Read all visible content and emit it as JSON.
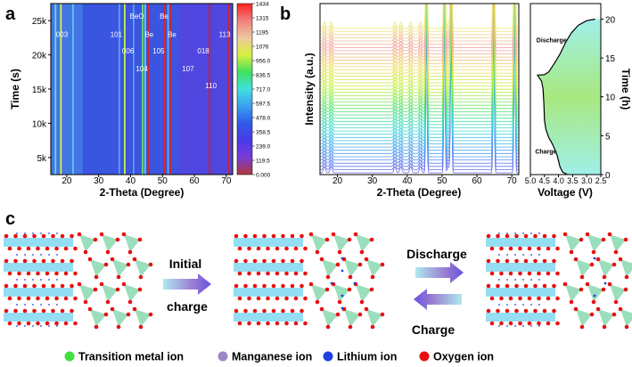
{
  "panel_labels": {
    "a": "a",
    "b": "b",
    "c": "c"
  },
  "chart_data": [
    {
      "type": "heatmap",
      "panel": "a",
      "xlabel": "2-Theta (Degree)",
      "ylabel": "Time (s)",
      "xlim": [
        15,
        72
      ],
      "ylim": [
        2500,
        27500
      ],
      "xticks": [
        20,
        30,
        40,
        50,
        60,
        70
      ],
      "yticks": [
        5000,
        10000,
        15000,
        20000,
        25000
      ],
      "ytick_labels": [
        "5k",
        "10k",
        "15k",
        "20k",
        "25k"
      ],
      "colorbar": {
        "range": [
          0,
          1434
        ],
        "tick_labels": [
          "0.000",
          "119.5",
          "239.0",
          "358.5",
          "478.0",
          "597.5",
          "717.0",
          "836.5",
          "956.0",
          "1076",
          "1195",
          "1315",
          "1434"
        ],
        "colors": [
          "#b03a3a",
          "#7a3ad8",
          "#4a3ae8",
          "#2f5ae8",
          "#3aa0f0",
          "#40e0e0",
          "#40e060",
          "#d8f040",
          "#f0c8a0",
          "#f08080",
          "#ff2020"
        ]
      },
      "background_color": "#3a55e0",
      "peaks": [
        {
          "x": 16.5,
          "color": "#60e0d0"
        },
        {
          "x": 18.2,
          "color": "#e0f040"
        },
        {
          "x": 22.0,
          "color": "#60c8e8"
        },
        {
          "x": 36.5,
          "color": "#5aa0f0"
        },
        {
          "x": 38.2,
          "color": "#c8f040"
        },
        {
          "x": 41.0,
          "color": "#5aa0f0"
        },
        {
          "x": 43.8,
          "color": "#70e070"
        },
        {
          "x": 44.6,
          "color": "#60d8e0"
        },
        {
          "x": 45.6,
          "color": "#e02020"
        },
        {
          "x": 50.7,
          "color": "#e02020"
        },
        {
          "x": 51.8,
          "color": "#50b0f0"
        },
        {
          "x": 52.6,
          "color": "#e02020"
        },
        {
          "x": 64.8,
          "color": "#d02020"
        },
        {
          "x": 70.8,
          "color": "#d02020"
        }
      ],
      "annotations": [
        {
          "text": "003",
          "x": 18.5,
          "y": 23000
        },
        {
          "text": "101",
          "x": 35.5,
          "y": 23000
        },
        {
          "text": "006",
          "x": 39.2,
          "y": 20600
        },
        {
          "text": "104",
          "x": 43.5,
          "y": 18000
        },
        {
          "text": "105",
          "x": 48.8,
          "y": 20600
        },
        {
          "text": "107",
          "x": 58.0,
          "y": 18000
        },
        {
          "text": "018",
          "x": 62.8,
          "y": 20600
        },
        {
          "text": "110",
          "x": 65.2,
          "y": 15500
        },
        {
          "text": "113",
          "x": 69.5,
          "y": 23000
        },
        {
          "text": "BeO",
          "x": 42.0,
          "y": 25700
        },
        {
          "text": "Be",
          "x": 45.8,
          "y": 23000
        },
        {
          "text": "Be",
          "x": 50.5,
          "y": 25700
        },
        {
          "text": "Be",
          "x": 53.0,
          "y": 23000
        }
      ]
    },
    {
      "type": "line",
      "panel": "b-left",
      "xlabel": "2-Theta (Degree)",
      "ylabel": "Intensity (a.u.)",
      "xlim": [
        15,
        72
      ],
      "xticks": [
        20,
        30,
        40,
        50,
        60,
        70
      ],
      "peak_positions": [
        16.3,
        18.2,
        36.5,
        38.2,
        41.0,
        43.8,
        45.5,
        50.7,
        51.8,
        52.6,
        64.8,
        70.8
      ],
      "trace_colors": [
        "#6a6ae8",
        "#4aa0f0",
        "#40d8d8",
        "#50e070",
        "#c0f040",
        "#f0e060",
        "#f0a0a0",
        "#f0f080"
      ]
    },
    {
      "type": "line",
      "panel": "b-right",
      "xlabel": "Voltage (V)",
      "ylabel": "Time (h)",
      "xlim": [
        5.0,
        2.5
      ],
      "ylim": [
        0,
        22
      ],
      "xticks": [
        5.0,
        4.5,
        4.0,
        3.5,
        3.0,
        2.5
      ],
      "xtick_labels": [
        "5.0",
        "4.5",
        "4.0",
        "3.5",
        "3.0",
        "2.5"
      ],
      "yticks": [
        0,
        5,
        10,
        15,
        20
      ],
      "annotations": [
        {
          "text": "Discharge",
          "x": 4.25,
          "y": 17
        },
        {
          "text": "Charge",
          "x": 4.45,
          "y": 2.7
        }
      ],
      "points": [
        [
          2.5,
          0
        ],
        [
          3.7,
          0.05
        ],
        [
          3.85,
          0.3
        ],
        [
          3.95,
          1
        ],
        [
          4.05,
          2.5
        ],
        [
          4.2,
          3.8
        ],
        [
          4.35,
          4.8
        ],
        [
          4.45,
          5.8
        ],
        [
          4.5,
          7
        ],
        [
          4.52,
          9
        ],
        [
          4.55,
          11
        ],
        [
          4.6,
          12
        ],
        [
          4.75,
          12.8
        ],
        [
          4.5,
          12.85
        ],
        [
          4.35,
          13.2
        ],
        [
          4.15,
          14.3
        ],
        [
          3.95,
          15.5
        ],
        [
          3.75,
          17
        ],
        [
          3.55,
          18.2
        ],
        [
          3.3,
          19.2
        ],
        [
          3.0,
          19.8
        ],
        [
          2.7,
          20
        ],
        [
          2.5,
          20
        ]
      ],
      "fill_colors": [
        "#a0f0e8",
        "#a8e880",
        "#a0f0e8"
      ]
    }
  ],
  "diagram": {
    "arrow1_top": "Initial",
    "arrow1_bottom": "charge",
    "arrow2_top": "Discharge",
    "arrow2_bottom": "Charge",
    "legend": [
      {
        "label": "Transition metal ion",
        "color": "#40e040"
      },
      {
        "label": "Manganese ion",
        "color": "#9a88c8"
      },
      {
        "label": "Lithium ion",
        "color": "#2040e0"
      },
      {
        "label": "Oxygen ion",
        "color": "#e81010"
      }
    ]
  }
}
